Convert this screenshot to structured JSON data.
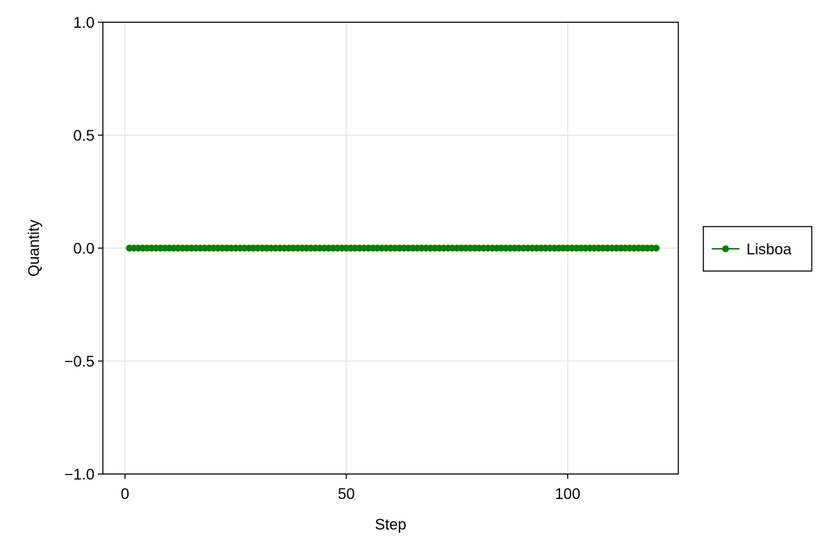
{
  "chart_data": {
    "type": "line",
    "title": "",
    "xlabel": "Step",
    "ylabel": "Quantity",
    "xlim": [
      -5,
      125
    ],
    "ylim": [
      -1.0,
      1.0
    ],
    "xticks": [
      0,
      50,
      100
    ],
    "xtick_labels": [
      "0",
      "50",
      "100"
    ],
    "yticks": [
      -1.0,
      -0.5,
      0.0,
      0.5,
      1.0
    ],
    "ytick_labels": [
      "−1.0",
      "−0.5",
      "0.0",
      "0.5",
      "1.0"
    ],
    "grid": true,
    "legend_position": "right",
    "series": [
      {
        "name": "Lisboa",
        "color": "#008000",
        "marker": "circle",
        "x_start": 1,
        "x_end": 120,
        "x_step": 1,
        "y_constant": 0.0
      }
    ]
  }
}
